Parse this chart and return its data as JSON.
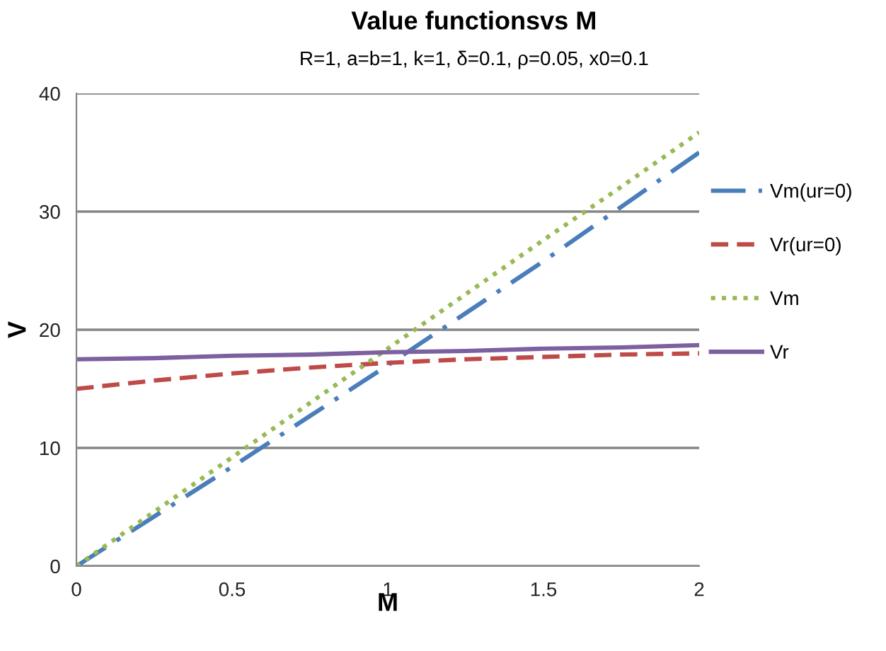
{
  "chart_data": {
    "type": "line",
    "title": "Value functionsvs M",
    "subtitle": "R=1, a=b=1, k=1, δ=0.1, ρ=0.05, x0=0.1",
    "xlabel": "M",
    "ylabel": "V",
    "x": [
      0,
      0.25,
      0.5,
      0.75,
      1,
      1.25,
      1.5,
      1.75,
      2
    ],
    "series": [
      {
        "name": "Vm(ur=0)",
        "color": "#4a7ebb",
        "line_style": "dashdot",
        "values": [
          0,
          4.2,
          8.4,
          12.7,
          17,
          21.4,
          25.8,
          30.4,
          35
        ]
      },
      {
        "name": "Vr(ur=0)",
        "color": "#be4b48",
        "line_style": "dashed",
        "values": [
          15,
          15.7,
          16.3,
          16.8,
          17.2,
          17.5,
          17.7,
          17.9,
          18
        ]
      },
      {
        "name": "Vm",
        "color": "#98b954",
        "line_style": "dotted",
        "values": [
          0,
          4.6,
          9.2,
          13.8,
          18.4,
          23,
          27.6,
          32.1,
          36.7
        ]
      },
      {
        "name": "Vr",
        "color": "#7d60a0",
        "line_style": "solid",
        "values": [
          17.5,
          17.6,
          17.8,
          17.9,
          18.1,
          18.2,
          18.4,
          18.5,
          18.7
        ]
      }
    ],
    "xlim": [
      0,
      2
    ],
    "xticks": [
      0,
      0.5,
      1,
      1.5,
      2
    ],
    "ylim": [
      0,
      40
    ],
    "yticks": [
      0,
      10,
      20,
      30,
      40
    ],
    "grid": "y",
    "legend": "right",
    "marker": "none"
  }
}
